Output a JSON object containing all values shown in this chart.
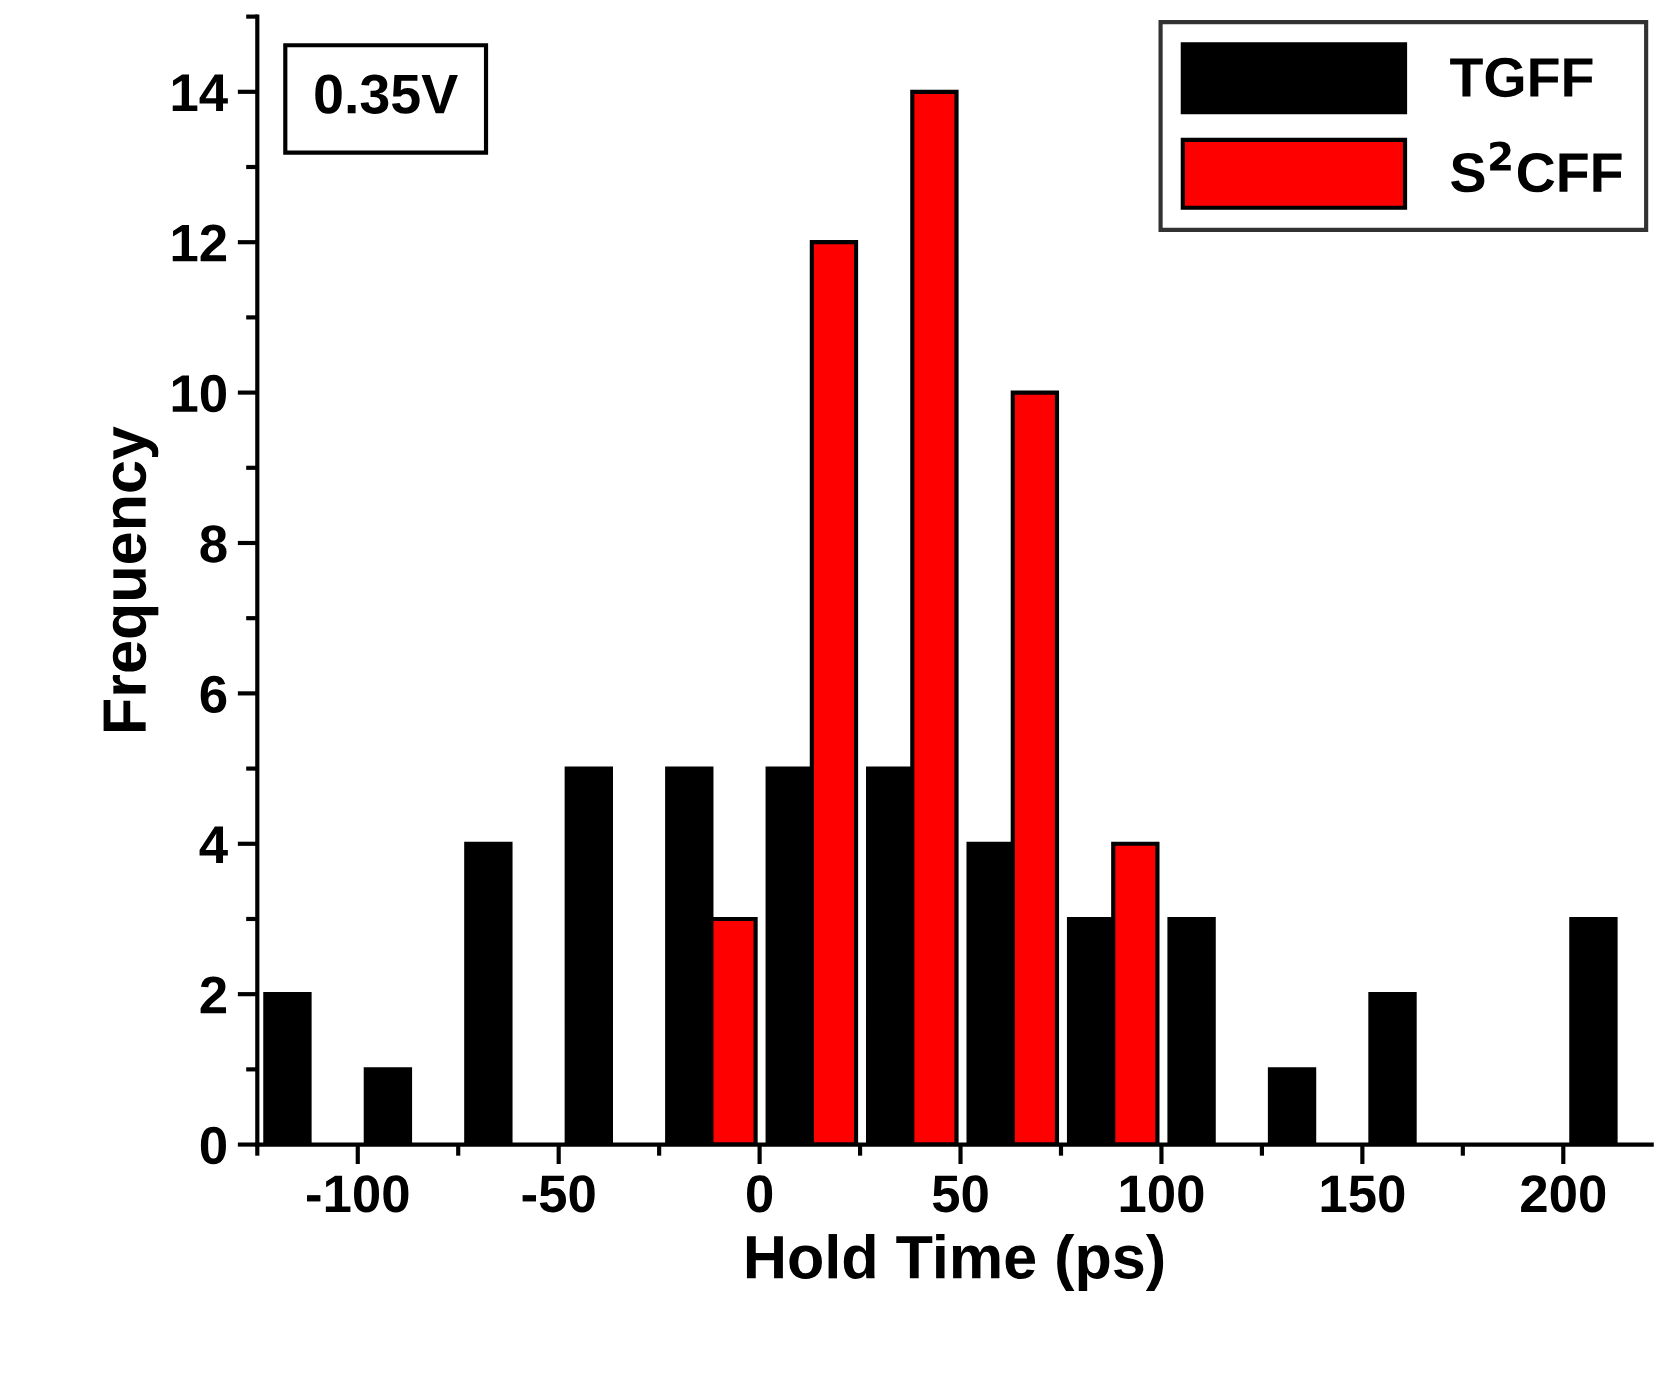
{
  "chart_data": {
    "type": "bar",
    "xlabel": "Hold Time (ps)",
    "ylabel": "Frequency",
    "xlim": [
      -125,
      222
    ],
    "xticks": [
      -100,
      -50,
      0,
      50,
      100,
      150,
      200
    ],
    "ylim": [
      0,
      15
    ],
    "yticks": [
      0,
      2,
      4,
      6,
      8,
      10,
      12,
      14
    ],
    "legend": "top right",
    "grid": false,
    "annotations": [
      "0.35V"
    ],
    "series": [
      {
        "name": "TGFF",
        "color": "#000000",
        "x": [
          -117.5,
          -92.5,
          -67.5,
          -42.5,
          -17.5,
          7.5,
          32.5,
          57.5,
          82.5,
          107.5,
          132.5,
          157.5,
          207.5
        ],
        "values": [
          2,
          1,
          4,
          5,
          5,
          5,
          5,
          4,
          3,
          3,
          1,
          2,
          3
        ]
      },
      {
        "name": "S$^{2}$CFF",
        "color": "#ff0000",
        "x": [
          -6.5,
          18.5,
          43.5,
          68.5,
          93.5
        ],
        "values": [
          3,
          12,
          14,
          10,
          4
        ]
      }
    ]
  }
}
